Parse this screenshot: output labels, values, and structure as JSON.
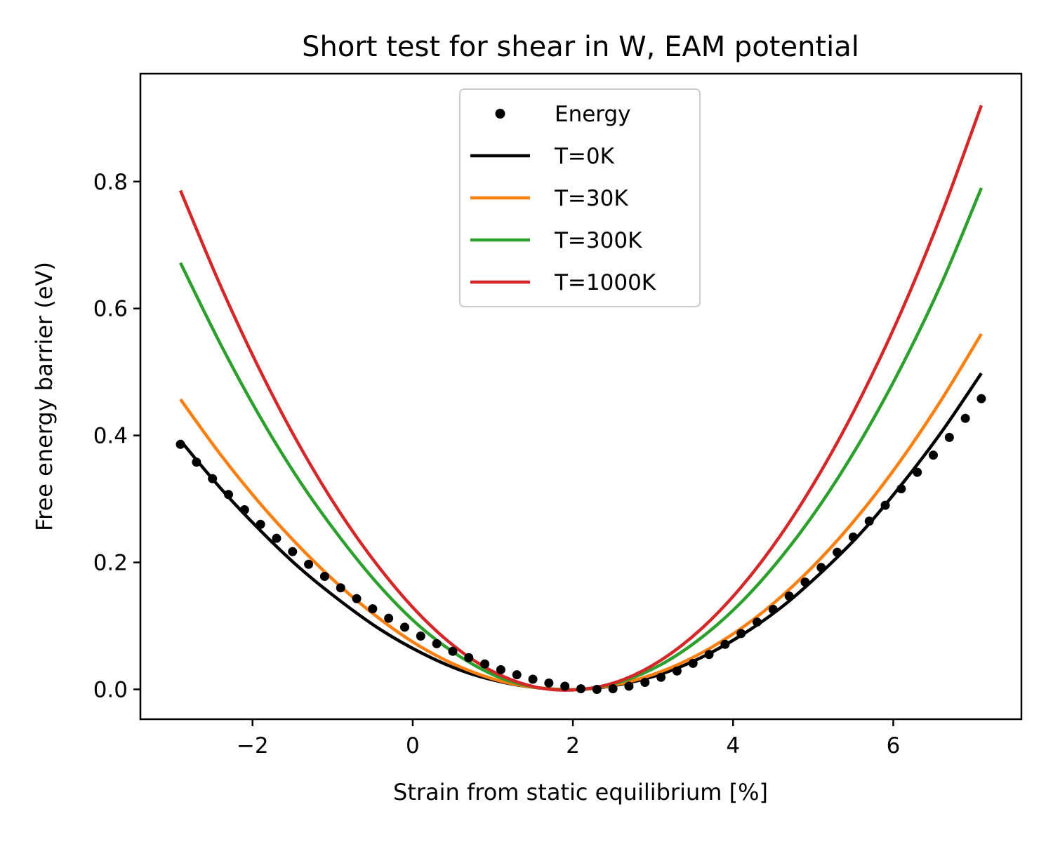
{
  "chart_data": {
    "type": "line",
    "title": "Short test for shear in W, EAM potential",
    "xlabel": "Strain from static equilibrium [%]",
    "ylabel": "Free energy barrier (eV)",
    "xlim": [
      -3.4,
      7.6
    ],
    "ylim": [
      -0.047,
      0.97
    ],
    "x_ticks": [
      -2,
      0,
      2,
      4,
      6
    ],
    "x_tick_labels": [
      "−2",
      "0",
      "2",
      "4",
      "6"
    ],
    "y_ticks": [
      0.0,
      0.2,
      0.4,
      0.6,
      0.8
    ],
    "y_tick_labels": [
      "0.0",
      "0.2",
      "0.4",
      "0.6",
      "0.8"
    ],
    "grid": false,
    "legend_position": "upper center",
    "scatter": {
      "name": "Energy",
      "color": "#000000",
      "x": [
        -2.9,
        -2.7,
        -2.5,
        -2.3,
        -2.1,
        -1.9,
        -1.7,
        -1.5,
        -1.3,
        -1.1,
        -0.9,
        -0.7,
        -0.5,
        -0.3,
        -0.1,
        0.1,
        0.3,
        0.5,
        0.7,
        0.9,
        1.1,
        1.3,
        1.5,
        1.7,
        1.9,
        2.1,
        2.3,
        2.5,
        2.7,
        2.9,
        3.1,
        3.3,
        3.5,
        3.7,
        3.9,
        4.1,
        4.3,
        4.5,
        4.7,
        4.9,
        5.1,
        5.3,
        5.5,
        5.7,
        5.9,
        6.1,
        6.3,
        6.5,
        6.7,
        6.9,
        7.1
      ],
      "y": [
        0.386,
        0.358,
        0.332,
        0.307,
        0.283,
        0.26,
        0.238,
        0.217,
        0.197,
        0.178,
        0.16,
        0.143,
        0.127,
        0.112,
        0.098,
        0.084,
        0.072,
        0.06,
        0.05,
        0.04,
        0.031,
        0.023,
        0.016,
        0.01,
        0.005,
        0.001,
        0.0,
        0.001,
        0.005,
        0.011,
        0.019,
        0.029,
        0.041,
        0.055,
        0.071,
        0.088,
        0.106,
        0.126,
        0.147,
        0.169,
        0.192,
        0.216,
        0.24,
        0.265,
        0.29,
        0.316,
        0.342,
        0.369,
        0.397,
        0.427,
        0.458
      ]
    },
    "series": [
      {
        "name": "T=0K",
        "color": "#000000",
        "x": [
          -2.9,
          -2.4,
          -1.9,
          -1.4,
          -0.9,
          -0.4,
          0.1,
          0.6,
          1.1,
          1.6,
          2.1,
          2.6,
          3.1,
          3.6,
          4.1,
          4.6,
          5.1,
          5.6,
          6.1,
          6.6,
          7.1
        ],
        "y": [
          0.392,
          0.317,
          0.25,
          0.19,
          0.139,
          0.094,
          0.058,
          0.03,
          0.012,
          0.002,
          0.0,
          0.008,
          0.024,
          0.05,
          0.085,
          0.129,
          0.184,
          0.247,
          0.322,
          0.405,
          0.498
        ]
      },
      {
        "name": "T=30K",
        "color": "#ff7f0e",
        "x": [
          -2.9,
          -2.4,
          -1.9,
          -1.4,
          -0.9,
          -0.4,
          0.1,
          0.6,
          1.1,
          1.6,
          2.1,
          2.6,
          3.1,
          3.6,
          4.1,
          4.6,
          5.1,
          5.6,
          6.1,
          6.6,
          7.1
        ],
        "y": [
          0.457,
          0.37,
          0.292,
          0.223,
          0.162,
          0.11,
          0.067,
          0.035,
          0.013,
          0.002,
          0.0,
          0.009,
          0.028,
          0.057,
          0.096,
          0.146,
          0.207,
          0.279,
          0.362,
          0.456,
          0.56
        ]
      },
      {
        "name": "T=300K",
        "color": "#2ca02c",
        "x": [
          -2.9,
          -2.4,
          -1.9,
          -1.4,
          -0.9,
          -0.4,
          0.1,
          0.6,
          1.1,
          1.6,
          2.1,
          2.6,
          3.1,
          3.6,
          4.1,
          4.6,
          5.1,
          5.6,
          6.1,
          6.6,
          7.1
        ],
        "y": [
          0.672,
          0.544,
          0.428,
          0.326,
          0.238,
          0.161,
          0.098,
          0.051,
          0.018,
          0.002,
          0.0,
          0.012,
          0.039,
          0.081,
          0.137,
          0.208,
          0.293,
          0.393,
          0.508,
          0.639,
          0.79
        ]
      },
      {
        "name": "T=1000K",
        "color": "#d62728",
        "x": [
          -2.9,
          -2.4,
          -1.9,
          -1.4,
          -0.9,
          -0.4,
          0.1,
          0.6,
          1.1,
          1.6,
          2.1,
          2.6,
          3.1,
          3.6,
          4.1,
          4.6,
          5.1,
          5.6,
          6.1,
          6.6,
          7.1
        ],
        "y": [
          0.786,
          0.636,
          0.501,
          0.381,
          0.277,
          0.189,
          0.116,
          0.06,
          0.022,
          0.002,
          0.0,
          0.014,
          0.046,
          0.095,
          0.161,
          0.244,
          0.344,
          0.461,
          0.595,
          0.748,
          0.92
        ]
      }
    ]
  }
}
